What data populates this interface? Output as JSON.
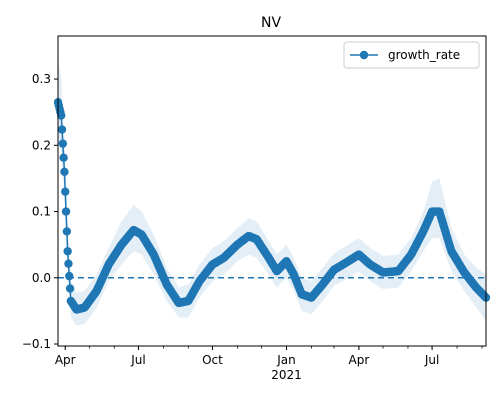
{
  "chart_data": {
    "type": "line",
    "title": "NV",
    "xlabel": "",
    "ylabel": "",
    "xlim": [
      "2020-03-23",
      "2021-09-06"
    ],
    "ylim": [
      -0.103,
      0.365
    ],
    "x_ticks": [
      {
        "date": "2020-04-01",
        "label": "Apr",
        "sublabel": ""
      },
      {
        "date": "2020-07-01",
        "label": "Jul",
        "sublabel": ""
      },
      {
        "date": "2020-10-01",
        "label": "Oct",
        "sublabel": ""
      },
      {
        "date": "2021-01-01",
        "label": "Jan",
        "sublabel": "2021"
      },
      {
        "date": "2021-04-01",
        "label": "Apr",
        "sublabel": ""
      },
      {
        "date": "2021-07-01",
        "label": "Jul",
        "sublabel": ""
      }
    ],
    "y_ticks": [
      {
        "value": -0.1,
        "label": "−0.1"
      },
      {
        "value": 0.0,
        "label": "0.0"
      },
      {
        "value": 0.1,
        "label": "0.1"
      },
      {
        "value": 0.2,
        "label": "0.2"
      },
      {
        "value": 0.3,
        "label": "0.3"
      }
    ],
    "reference_line": {
      "y": 0.0,
      "style": "dashed",
      "color": "#1f77b4"
    },
    "legend": {
      "position": "upper-right",
      "entries": [
        "growth_rate"
      ]
    },
    "series": [
      {
        "name": "growth_rate",
        "color": "#1f77b4",
        "marker": "circle",
        "band_color": "#1f77b4",
        "band_opacity": 0.12,
        "key_points": [
          {
            "x": "2020-03-23",
            "y": 0.265,
            "lo": 0.21,
            "hi": 0.33
          },
          {
            "x": "2020-03-27",
            "y": 0.245,
            "lo": 0.19,
            "hi": 0.3
          },
          {
            "x": "2020-03-31",
            "y": 0.16,
            "lo": 0.12,
            "hi": 0.21
          },
          {
            "x": "2020-04-04",
            "y": 0.04,
            "lo": 0.01,
            "hi": 0.08
          },
          {
            "x": "2020-04-08",
            "y": -0.035,
            "lo": -0.06,
            "hi": -0.005
          },
          {
            "x": "2020-04-15",
            "y": -0.048,
            "lo": -0.072,
            "hi": -0.022
          },
          {
            "x": "2020-04-25",
            "y": -0.045,
            "lo": -0.07,
            "hi": -0.02
          },
          {
            "x": "2020-05-10",
            "y": -0.02,
            "lo": -0.045,
            "hi": 0.005
          },
          {
            "x": "2020-05-25",
            "y": 0.02,
            "lo": -0.005,
            "hi": 0.045
          },
          {
            "x": "2020-06-10",
            "y": 0.05,
            "lo": 0.02,
            "hi": 0.085
          },
          {
            "x": "2020-06-25",
            "y": 0.072,
            "lo": 0.04,
            "hi": 0.11
          },
          {
            "x": "2020-07-05",
            "y": 0.065,
            "lo": 0.035,
            "hi": 0.1
          },
          {
            "x": "2020-07-20",
            "y": 0.035,
            "lo": 0.005,
            "hi": 0.065
          },
          {
            "x": "2020-08-05",
            "y": -0.01,
            "lo": -0.035,
            "hi": 0.015
          },
          {
            "x": "2020-08-20",
            "y": -0.038,
            "lo": -0.06,
            "hi": -0.015
          },
          {
            "x": "2020-09-01",
            "y": -0.035,
            "lo": -0.06,
            "hi": -0.01
          },
          {
            "x": "2020-09-15",
            "y": -0.005,
            "lo": -0.03,
            "hi": 0.02
          },
          {
            "x": "2020-10-01",
            "y": 0.02,
            "lo": -0.005,
            "hi": 0.045
          },
          {
            "x": "2020-10-15",
            "y": 0.03,
            "lo": 0.005,
            "hi": 0.055
          },
          {
            "x": "2020-11-01",
            "y": 0.05,
            "lo": 0.025,
            "hi": 0.075
          },
          {
            "x": "2020-11-15",
            "y": 0.063,
            "lo": 0.035,
            "hi": 0.09
          },
          {
            "x": "2020-11-25",
            "y": 0.058,
            "lo": 0.03,
            "hi": 0.085
          },
          {
            "x": "2020-12-10",
            "y": 0.03,
            "lo": 0.005,
            "hi": 0.055
          },
          {
            "x": "2020-12-20",
            "y": 0.01,
            "lo": -0.015,
            "hi": 0.035
          },
          {
            "x": "2021-01-01",
            "y": 0.025,
            "lo": 0.0,
            "hi": 0.05
          },
          {
            "x": "2021-01-10",
            "y": 0.005,
            "lo": -0.02,
            "hi": 0.03
          },
          {
            "x": "2021-01-20",
            "y": -0.025,
            "lo": -0.05,
            "hi": 0.0
          },
          {
            "x": "2021-02-01",
            "y": -0.03,
            "lo": -0.055,
            "hi": -0.005
          },
          {
            "x": "2021-02-15",
            "y": -0.01,
            "lo": -0.035,
            "hi": 0.015
          },
          {
            "x": "2021-03-01",
            "y": 0.012,
            "lo": -0.012,
            "hi": 0.037
          },
          {
            "x": "2021-03-15",
            "y": 0.022,
            "lo": -0.003,
            "hi": 0.047
          },
          {
            "x": "2021-04-01",
            "y": 0.035,
            "lo": 0.01,
            "hi": 0.06
          },
          {
            "x": "2021-04-15",
            "y": 0.02,
            "lo": -0.005,
            "hi": 0.045
          },
          {
            "x": "2021-05-01",
            "y": 0.008,
            "lo": -0.017,
            "hi": 0.033
          },
          {
            "x": "2021-05-20",
            "y": 0.01,
            "lo": -0.015,
            "hi": 0.035
          },
          {
            "x": "2021-06-05",
            "y": 0.035,
            "lo": 0.01,
            "hi": 0.06
          },
          {
            "x": "2021-06-20",
            "y": 0.07,
            "lo": 0.04,
            "hi": 0.1
          },
          {
            "x": "2021-07-01",
            "y": 0.1,
            "lo": 0.06,
            "hi": 0.145
          },
          {
            "x": "2021-07-10",
            "y": 0.1,
            "lo": 0.06,
            "hi": 0.15
          },
          {
            "x": "2021-07-25",
            "y": 0.04,
            "lo": 0.01,
            "hi": 0.075
          },
          {
            "x": "2021-08-10",
            "y": 0.008,
            "lo": -0.02,
            "hi": 0.035
          },
          {
            "x": "2021-08-25",
            "y": -0.015,
            "lo": -0.045,
            "hi": 0.015
          },
          {
            "x": "2021-09-06",
            "y": -0.03,
            "lo": -0.065,
            "hi": 0.005
          }
        ]
      }
    ]
  }
}
